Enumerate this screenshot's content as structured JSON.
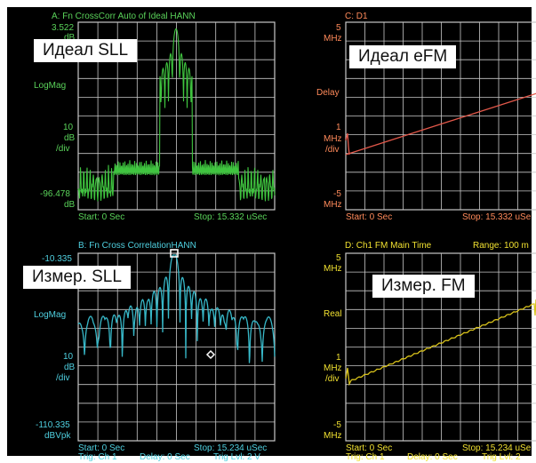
{
  "colors": {
    "background": "#000000",
    "grid": "#c8c8c8",
    "green_trace": "#3fc43f",
    "green_text": "#5ad35a",
    "cyan_trace": "#37b8c8",
    "cyan_text": "#4fd0e0",
    "red_trace": "#e2584a",
    "red_text": "#ff8a5a",
    "yellow_trace": "#d8c21a",
    "yellow_text": "#f0e030",
    "frame": "#ffffff"
  },
  "panels": {
    "a": {
      "title": "A: Fn CrossCorr Auto of Ideal HANN",
      "top_value": "3.522",
      "top_unit": "dB",
      "format": "LogMag",
      "scale_value": "10",
      "scale_unit": "dB",
      "scale_per": "/div",
      "bottom_value": "-96.478",
      "bottom_unit": "dB",
      "start": "Start: 0  Sec",
      "stop": "Stop: 15.332  uSec",
      "overlay_label": "Идеал SLL"
    },
    "b": {
      "title": "B: Fn Cross CorrelationHANN",
      "top_value": "-10.335",
      "format": "LogMag",
      "scale_value": "10",
      "scale_unit": "dB",
      "scale_per": "/div",
      "bottom_value": "-110.335",
      "bottom_unit": "dBVpk",
      "start": "Start: 0  Sec",
      "stop": "Stop: 15.234  uSec",
      "trig": "Trig: Ch 1",
      "delay": "Delay: 0  Sec",
      "trig_lvl": "Trig Lvl: 2  V",
      "overlay_label": "Измер. SLL"
    },
    "c": {
      "title": "C: D1",
      "top_value": "5",
      "top_unit": "MHz",
      "format": "Delay",
      "scale_value": "1",
      "scale_unit": "MHz",
      "scale_per": "/div",
      "bottom_value": "-5",
      "bottom_unit": "MHz",
      "start": "Start: 0  Sec",
      "stop": "Stop: 15.332  uSe",
      "overlay_label": "Идеал eFM"
    },
    "d": {
      "title": "D: Ch1 FM Main Time",
      "range": "Range: 100 m",
      "top_value": "5",
      "top_unit": "MHz",
      "format": "Real",
      "scale_value": "1",
      "scale_unit": "MHz",
      "scale_per": "/div",
      "bottom_value": "-5",
      "bottom_unit": "MHz",
      "start": "Start: 0  Sec",
      "stop": "Stop: 15.234  uSe",
      "trig": "Trig: Ch 1",
      "delay": "Delay: 0  Sec",
      "trig_lvl": "Trig Lvl: 2",
      "overlay_label": "Измер. FM"
    }
  }
}
